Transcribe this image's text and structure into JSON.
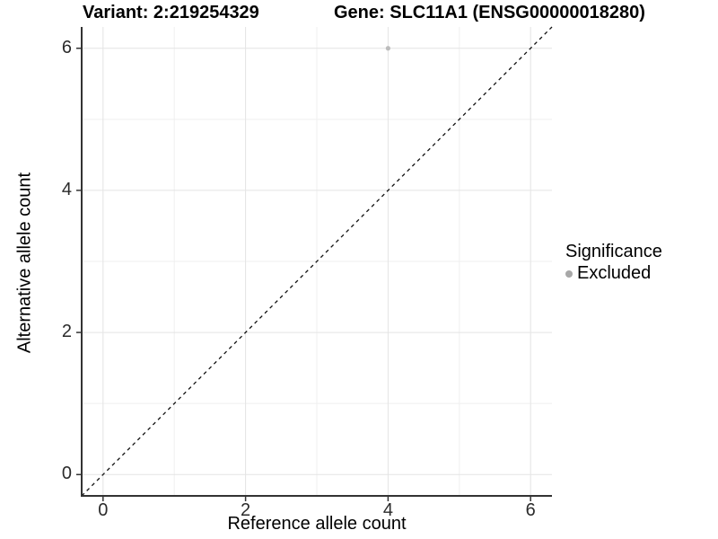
{
  "titles": {
    "variant": "Variant: 2:219254329",
    "gene": "Gene: SLC11A1 (ENSG00000018280)"
  },
  "chart_data": {
    "type": "scatter",
    "xlabel": "Reference allele count",
    "ylabel": "Alternative allele count",
    "xlim": [
      -0.3,
      6.3
    ],
    "ylim": [
      -0.3,
      6.3
    ],
    "x_major_ticks": [
      0,
      2,
      4,
      6
    ],
    "y_major_ticks": [
      0,
      2,
      4,
      6
    ],
    "x_minor_ticks": [
      1,
      3,
      5
    ],
    "y_minor_ticks": [
      1,
      3,
      5
    ],
    "grid": "major-and-minor",
    "points": [
      {
        "x": 4,
        "y": 6,
        "series": "Excluded"
      }
    ],
    "reference_line": {
      "slope": 1,
      "intercept": 0,
      "style": "dashed",
      "color": "#111111"
    },
    "legend": {
      "title": "Significance",
      "position": "right",
      "items": [
        {
          "label": "Excluded",
          "color": "#a8a8a8",
          "marker": "circle"
        }
      ]
    },
    "colors": {
      "point": "#bcbcbc",
      "grid_major": "#e4e4e4",
      "grid_minor": "#efefef",
      "axis": "#333333",
      "background": "#ffffff"
    }
  }
}
